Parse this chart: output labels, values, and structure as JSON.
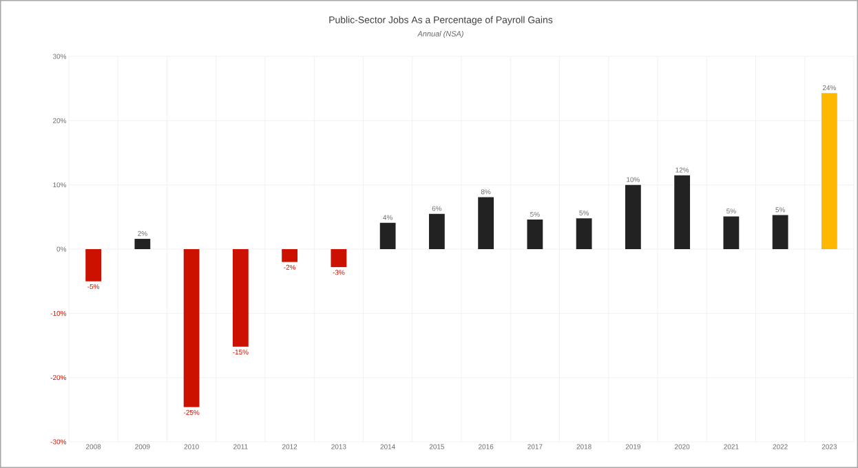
{
  "chart_data": {
    "type": "bar",
    "title": "Public-Sector Jobs As a Percentage of Payroll Gains",
    "subtitle": "*Annual (NSA)*",
    "categories": [
      "2008",
      "2009",
      "2010",
      "2011",
      "2012",
      "2013",
      "2014",
      "2015",
      "2016",
      "2017",
      "2018",
      "2019",
      "2020",
      "2021",
      "2022",
      "2023"
    ],
    "values": [
      -5.0,
      1.6,
      -24.6,
      -15.2,
      -2.0,
      -2.8,
      4.1,
      5.5,
      8.1,
      4.6,
      4.8,
      10.0,
      11.5,
      5.1,
      5.3,
      24.3
    ],
    "value_labels": [
      "-5%",
      "2%",
      "-25%",
      "-15%",
      "-2%",
      "-3%",
      "4%",
      "6%",
      "8%",
      "5%",
      "5%",
      "10%",
      "12%",
      "5%",
      "5%",
      "24%"
    ],
    "colors": [
      "#cc1100",
      "#222222",
      "#cc1100",
      "#cc1100",
      "#cc1100",
      "#cc1100",
      "#222222",
      "#222222",
      "#222222",
      "#222222",
      "#222222",
      "#222222",
      "#222222",
      "#222222",
      "#222222",
      "#ffb800"
    ],
    "ylim": [
      -30,
      30
    ],
    "yticks": [
      {
        "value": -30,
        "label": "-30%"
      },
      {
        "value": -20,
        "label": "-20%"
      },
      {
        "value": -10,
        "label": "-10%"
      },
      {
        "value": 0,
        "label": "0%"
      },
      {
        "value": 10,
        "label": "10%"
      },
      {
        "value": 20,
        "label": "20%"
      },
      {
        "value": 30,
        "label": "30%"
      }
    ],
    "grid": true
  }
}
